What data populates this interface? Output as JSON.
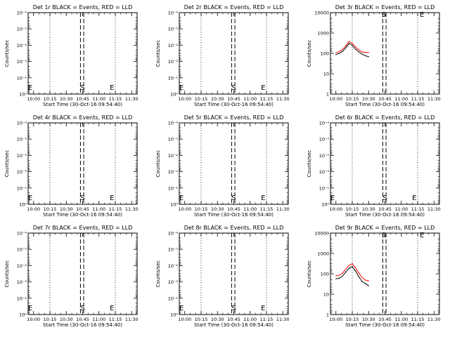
{
  "xlabel": "Start Time (30-Oct-16 09:54:40)",
  "ylabel": "Counts/sec",
  "x_ticks": [
    "10:00",
    "10:15",
    "10:30",
    "10:45",
    "11:00",
    "11:15",
    "11:30"
  ],
  "x_range_minutes": [
    -5,
    95
  ],
  "dotted_x_minutes": [
    15,
    75
  ],
  "dashed_x_minutes": [
    43,
    46
  ],
  "colors": {
    "events": "#000000",
    "lld": "#ff0000",
    "axes": "#000000"
  },
  "chart_data": [
    {
      "type": "line",
      "title": "Det 1r BLACK = Events, RED = LLD",
      "yscale": "log",
      "ylim": [
        0.5,
        2e-06
      ],
      "y_ticks": [
        "10⁻⁴",
        "10⁻⁵",
        "10⁻²",
        "10⁻³",
        "10⁻¹",
        "10⁰"
      ],
      "markers": [
        {
          "label": "E",
          "x": -3
        },
        {
          "label": "S",
          "x": 45
        },
        {
          "label": "E",
          "x": 72
        }
      ],
      "series": []
    },
    {
      "type": "line",
      "title": "Det 2r BLACK = Events, RED = LLD",
      "yscale": "log",
      "ylim": [
        0.5,
        2e-06
      ],
      "y_ticks": [
        "10⁻⁴",
        "10⁻⁵",
        "10⁻²",
        "10⁻³",
        "10⁻¹",
        "10⁰"
      ],
      "markers": [
        {
          "label": "E",
          "x": -3
        },
        {
          "label": "S",
          "x": 45
        },
        {
          "label": "E",
          "x": 72
        }
      ],
      "series": []
    },
    {
      "type": "line",
      "title": "Det 3r BLACK = Events, RED = LLD",
      "yscale": "log",
      "ylim": [
        1,
        16000
      ],
      "y_ticks": [
        "10000",
        "1000",
        "100",
        "10",
        "1"
      ],
      "markers": [
        {
          "label": "S",
          "x": 44
        },
        {
          "label": "E",
          "x": 79
        }
      ],
      "series": [
        {
          "color": "red",
          "x": [
            0,
            3,
            6,
            9,
            12,
            15,
            18,
            21,
            24,
            27,
            30
          ],
          "values": [
            135,
            155,
            200,
            300,
            520,
            410,
            270,
            190,
            150,
            140,
            140
          ]
        },
        {
          "color": "black",
          "x": [
            0,
            3,
            6,
            9,
            12,
            15,
            18,
            21,
            24,
            27,
            30
          ],
          "values": [
            110,
            125,
            160,
            240,
            410,
            330,
            210,
            150,
            115,
            95,
            85
          ]
        }
      ]
    },
    {
      "type": "line",
      "title": "Det 4r BLACK = Events, RED = LLD",
      "yscale": "log",
      "ylim": [
        0.5,
        2e-06
      ],
      "y_ticks": [
        "10⁻⁴",
        "10⁻⁵",
        "10⁻²",
        "10⁻³",
        "10⁻¹",
        "10⁰"
      ],
      "markers": [
        {
          "label": "E",
          "x": -3
        },
        {
          "label": "S",
          "x": 45
        },
        {
          "label": "E",
          "x": 72
        }
      ],
      "series": []
    },
    {
      "type": "line",
      "title": "Det 5r BLACK = Events, RED = LLD",
      "yscale": "log",
      "ylim": [
        0.5,
        2e-06
      ],
      "y_ticks": [
        "10⁻⁴",
        "10⁻⁵",
        "10⁻²",
        "10⁻³",
        "10⁻¹",
        "10⁰"
      ],
      "markers": [
        {
          "label": "E",
          "x": -3
        },
        {
          "label": "S",
          "x": 45
        },
        {
          "label": "E",
          "x": 72
        }
      ],
      "series": []
    },
    {
      "type": "line",
      "title": "Det 6r BLACK = Events, RED = LLD",
      "yscale": "log",
      "ylim": [
        0.5,
        2e-06
      ],
      "y_ticks": [
        "10⁻⁴",
        "10⁻⁵",
        "10⁻²",
        "10⁻³",
        "10⁻¹",
        "10⁰"
      ],
      "markers": [
        {
          "label": "E",
          "x": -3
        },
        {
          "label": "S",
          "x": 45
        },
        {
          "label": "E",
          "x": 72
        }
      ],
      "series": []
    },
    {
      "type": "line",
      "title": "Det 7r BLACK = Events, RED = LLD",
      "yscale": "log",
      "ylim": [
        0.5,
        2e-06
      ],
      "y_ticks": [
        "10⁻⁴",
        "10⁻⁵",
        "10⁻²",
        "10⁻³",
        "10⁻¹",
        "10⁰"
      ],
      "markers": [
        {
          "label": "E",
          "x": -3
        },
        {
          "label": "S",
          "x": 45
        },
        {
          "label": "E",
          "x": 72
        }
      ],
      "series": []
    },
    {
      "type": "line",
      "title": "Det 8r BLACK = Events, RED = LLD",
      "yscale": "log",
      "ylim": [
        0.5,
        2e-06
      ],
      "y_ticks": [
        "10⁻⁴",
        "10⁻⁵",
        "10⁻²",
        "10⁻³",
        "10⁻¹",
        "10⁰"
      ],
      "markers": [
        {
          "label": "E",
          "x": -3
        },
        {
          "label": "S",
          "x": 45
        },
        {
          "label": "E",
          "x": 72
        }
      ],
      "series": []
    },
    {
      "type": "line",
      "title": "Det 9r BLACK = Events, RED = LLD",
      "yscale": "log",
      "ylim": [
        1,
        16000
      ],
      "y_ticks": [
        "10000",
        "1000",
        "100",
        "10",
        "1"
      ],
      "markers": [
        {
          "label": "S",
          "x": 44
        },
        {
          "label": "E",
          "x": 79
        }
      ],
      "series": [
        {
          "color": "red",
          "x": [
            0,
            3,
            6,
            9,
            12,
            15,
            18,
            21,
            24,
            27,
            30
          ],
          "values": [
            100,
            105,
            135,
            220,
            340,
            420,
            260,
            140,
            80,
            60,
            55
          ]
        },
        {
          "color": "black",
          "x": [
            0,
            3,
            6,
            9,
            12,
            15,
            18,
            21,
            24,
            27,
            30
          ],
          "values": [
            70,
            75,
            95,
            155,
            240,
            300,
            180,
            90,
            50,
            40,
            30
          ]
        }
      ]
    }
  ]
}
